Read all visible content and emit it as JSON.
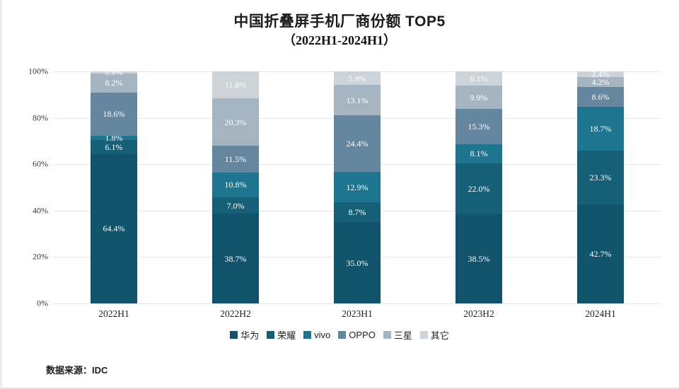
{
  "title": "中国折叠屏手机厂商份额 TOP5",
  "subtitle": "（2022H1-2024H1）",
  "source": "数据来源：IDC",
  "colors": {
    "huawei": "#10536a",
    "honor": "#166077",
    "vivo": "#1d7590",
    "oppo": "#64869f",
    "samsung": "#a4b4c1",
    "others": "#ccd4da",
    "gridline": "#e8e8e8"
  },
  "chart_data": {
    "type": "bar",
    "stacked": true,
    "title": "中国折叠屏手机厂商份额 TOP5",
    "subtitle": "（2022H1-2024H1）",
    "categories": [
      "2022H1",
      "2022H2",
      "2023H1",
      "2023H2",
      "2024H1"
    ],
    "series": [
      {
        "name": "华为",
        "color": "#10536a",
        "values": [
          64.4,
          38.7,
          35.0,
          38.5,
          42.7
        ]
      },
      {
        "name": "荣耀",
        "color": "#166077",
        "values": [
          6.1,
          7.0,
          8.7,
          22.0,
          23.3
        ]
      },
      {
        "name": "vivo",
        "color": "#1d7590",
        "values": [
          1.8,
          10.8,
          12.9,
          8.1,
          18.7
        ]
      },
      {
        "name": "OPPO",
        "color": "#64869f",
        "values": [
          18.6,
          11.5,
          24.4,
          15.3,
          8.6
        ]
      },
      {
        "name": "三星",
        "color": "#a4b4c1",
        "values": [
          8.2,
          20.3,
          13.1,
          9.9,
          4.2
        ]
      },
      {
        "name": "其它",
        "color": "#ccd4da",
        "values": [
          0.9,
          11.8,
          5.9,
          6.1,
          2.4
        ]
      }
    ],
    "xlabel": "",
    "ylabel": "",
    "ylim": [
      0,
      100
    ],
    "y_ticks": [
      0,
      20,
      40,
      60,
      80,
      100
    ],
    "y_tick_labels": [
      "0%",
      "20%",
      "40%",
      "60%",
      "80%",
      "100%"
    ],
    "grid": true,
    "legend_position": "bottom",
    "value_label_suffix": "%"
  }
}
